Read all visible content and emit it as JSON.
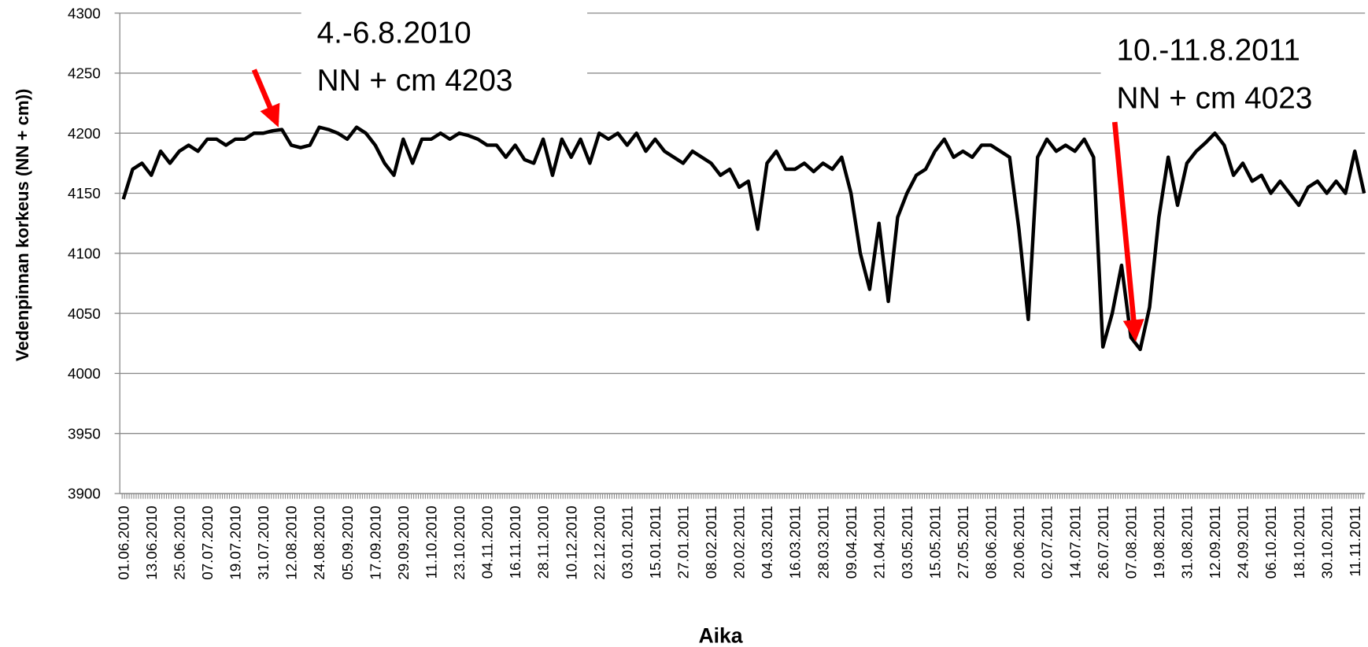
{
  "chart_data": {
    "type": "line",
    "ylabel": "Vedenpinnan korkeus (NN + cm))",
    "xlabel": "Aika",
    "categories": [
      "01.06.2010",
      null,
      null,
      "13.06.2010",
      null,
      null,
      "25.06.2010",
      null,
      null,
      "07.07.2010",
      null,
      null,
      "19.07.2010",
      null,
      null,
      "31.07.2010",
      null,
      null,
      "12.08.2010",
      null,
      null,
      "24.08.2010",
      null,
      null,
      "05.09.2010",
      null,
      null,
      "17.09.2010",
      null,
      null,
      "29.09.2010",
      null,
      null,
      "11.10.2010",
      null,
      null,
      "23.10.2010",
      null,
      null,
      "04.11.2010",
      null,
      null,
      "16.11.2010",
      null,
      null,
      "28.11.2010",
      null,
      null,
      "10.12.2010",
      null,
      null,
      "22.12.2010",
      null,
      null,
      "03.01.2011",
      null,
      null,
      "15.01.2011",
      null,
      null,
      "27.01.2011",
      null,
      null,
      "08.02.2011",
      null,
      null,
      "20.02.2011",
      null,
      null,
      "04.03.2011",
      null,
      null,
      "16.03.2011",
      null,
      null,
      "28.03.2011",
      null,
      null,
      "09.04.2011",
      null,
      null,
      "21.04.2011",
      null,
      null,
      "03.05.2011",
      null,
      null,
      "15.05.2011",
      null,
      null,
      "27.05.2011",
      null,
      null,
      "08.06.2011",
      null,
      null,
      "20.06.2011",
      null,
      null,
      "02.07.2011",
      null,
      null,
      "14.07.2011",
      null,
      null,
      "26.07.2011",
      null,
      null,
      "07.08.2011",
      null,
      null,
      "19.08.2011",
      null,
      null,
      "31.08.2011",
      null,
      null,
      "12.09.2011",
      null,
      null,
      "24.09.2011",
      null,
      null,
      "06.10.2011",
      null,
      null,
      "18.10.2011",
      null,
      null,
      "30.10.2011",
      null,
      null,
      "11.11.2011",
      null
    ],
    "values": [
      4145,
      4170,
      4175,
      4165,
      4185,
      4175,
      4185,
      4190,
      4185,
      4195,
      4195,
      4190,
      4195,
      4195,
      4200,
      4200,
      4202,
      4203,
      4190,
      4188,
      4190,
      4205,
      4203,
      4200,
      4195,
      4205,
      4200,
      4190,
      4175,
      4165,
      4195,
      4175,
      4195,
      4195,
      4200,
      4195,
      4200,
      4198,
      4195,
      4190,
      4190,
      4180,
      4190,
      4178,
      4175,
      4195,
      4165,
      4195,
      4180,
      4195,
      4175,
      4200,
      4195,
      4200,
      4190,
      4200,
      4185,
      4195,
      4185,
      4180,
      4175,
      4185,
      4180,
      4175,
      4165,
      4170,
      4155,
      4160,
      4120,
      4175,
      4185,
      4170,
      4170,
      4175,
      4168,
      4175,
      4170,
      4180,
      4150,
      4100,
      4070,
      4125,
      4060,
      4130,
      4150,
      4165,
      4170,
      4185,
      4195,
      4180,
      4185,
      4180,
      4190,
      4190,
      4185,
      4180,
      4120,
      4045,
      4180,
      4195,
      4185,
      4190,
      4185,
      4195,
      4180,
      4022,
      4050,
      4090,
      4030,
      4020,
      4055,
      4130,
      4180,
      4140,
      4175,
      4185,
      4192,
      4200,
      4190,
      4165,
      4175,
      4160,
      4165,
      4150,
      4160,
      4150,
      4140,
      4155,
      4160,
      4150,
      4160,
      4150,
      4185,
      4150
    ],
    "color": "#000000",
    "ylim": [
      3900,
      4300
    ],
    "yticks": [
      3900,
      3950,
      4000,
      4050,
      4100,
      4150,
      4200,
      4250,
      4300
    ],
    "grid": true,
    "annotations": [
      {
        "lines": [
          "4.-6.8.2010",
          "NN + cm 4203"
        ]
      },
      {
        "lines": [
          "10.-11.8.2011",
          "NN + cm 4023"
        ]
      }
    ]
  }
}
